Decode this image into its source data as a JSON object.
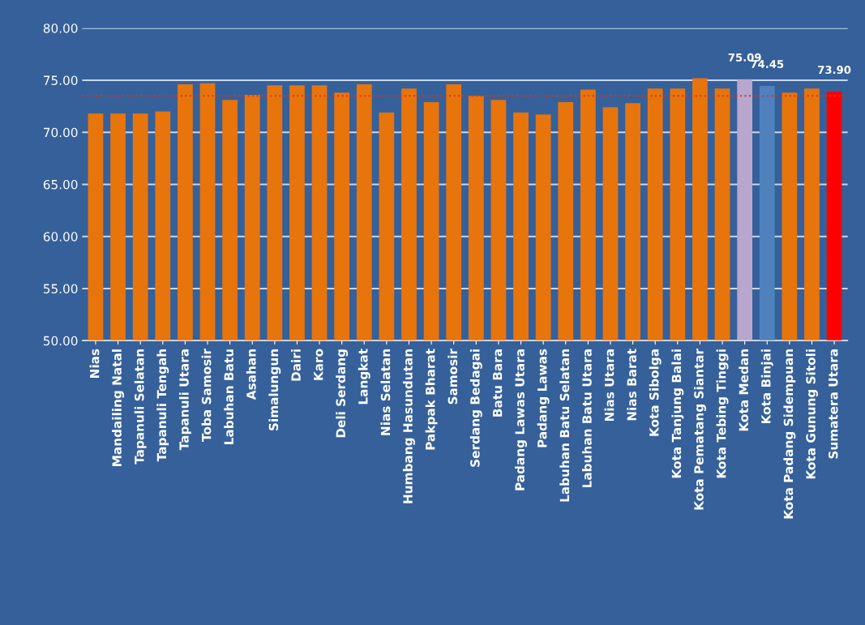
{
  "chart_data": {
    "type": "bar",
    "categories": [
      "Nias",
      "Mandailing Natal",
      "Tapanuli Selatan",
      "Tapanuli Tengah",
      "Tapanuli Utara",
      "Toba Samosir",
      "Labuhan Batu",
      "Asahan",
      "Simalungun",
      "Dairi",
      "Karo",
      "Deli Serdang",
      "Langkat",
      "Nias Selatan",
      "Humbang Hasundutan",
      "Pakpak Bharat",
      "Samosir",
      "Serdang Bedagai",
      "Batu Bara",
      "Padang Lawas Utara",
      "Padang Lawas",
      "Labuhan Batu Selatan",
      "Labuhan Batu Utara",
      "Nias Utara",
      "Nias Barat",
      "Kota Sibolga",
      "Kota Tanjung Balai",
      "Kota Pematang Siantar",
      "Kota Tebing Tinggi",
      "Kota Medan",
      "Kota Binjai",
      "Kota Padang Sidempuan",
      "Kota Gunung Sitoli",
      "Sumatera Utara"
    ],
    "values": [
      71.8,
      71.8,
      71.8,
      72.0,
      74.6,
      74.7,
      73.1,
      73.6,
      74.5,
      74.5,
      74.5,
      73.8,
      74.6,
      71.9,
      74.2,
      72.9,
      74.6,
      73.5,
      73.1,
      71.9,
      71.7,
      72.9,
      74.1,
      72.4,
      72.8,
      74.2,
      74.2,
      75.2,
      74.2,
      75.09,
      74.45,
      73.8,
      74.2,
      73.9
    ],
    "colors": [
      "#e8740c",
      "#e8740c",
      "#e8740c",
      "#e8740c",
      "#e8740c",
      "#e8740c",
      "#e8740c",
      "#e8740c",
      "#e8740c",
      "#e8740c",
      "#e8740c",
      "#e8740c",
      "#e8740c",
      "#e8740c",
      "#e8740c",
      "#e8740c",
      "#e8740c",
      "#e8740c",
      "#e8740c",
      "#e8740c",
      "#e8740c",
      "#e8740c",
      "#e8740c",
      "#e8740c",
      "#e8740c",
      "#e8740c",
      "#e8740c",
      "#e8740c",
      "#e8740c",
      "#b9a6cc",
      "#4f81bd",
      "#e8740c",
      "#e8740c",
      "#ff0000"
    ],
    "value_labels": [
      null,
      null,
      null,
      null,
      null,
      null,
      null,
      null,
      null,
      null,
      null,
      null,
      null,
      null,
      null,
      null,
      null,
      null,
      null,
      null,
      null,
      null,
      null,
      null,
      null,
      null,
      null,
      null,
      null,
      "75.09",
      "74.45",
      null,
      null,
      "73.90"
    ],
    "ylim": [
      50,
      80
    ],
    "yticks": [
      {
        "value": 50,
        "label": "50.00"
      },
      {
        "value": 55,
        "label": "55.00"
      },
      {
        "value": 60,
        "label": "60.00"
      },
      {
        "value": 65,
        "label": "65.00"
      },
      {
        "value": 70,
        "label": "70.00"
      },
      {
        "value": 75,
        "label": "75.00"
      },
      {
        "value": 80,
        "label": "80.00"
      }
    ],
    "grid": "y",
    "ref_lines": [
      {
        "axis": "y",
        "value": 73.5,
        "color": "#e03020",
        "line_style": "dotted"
      }
    ]
  }
}
